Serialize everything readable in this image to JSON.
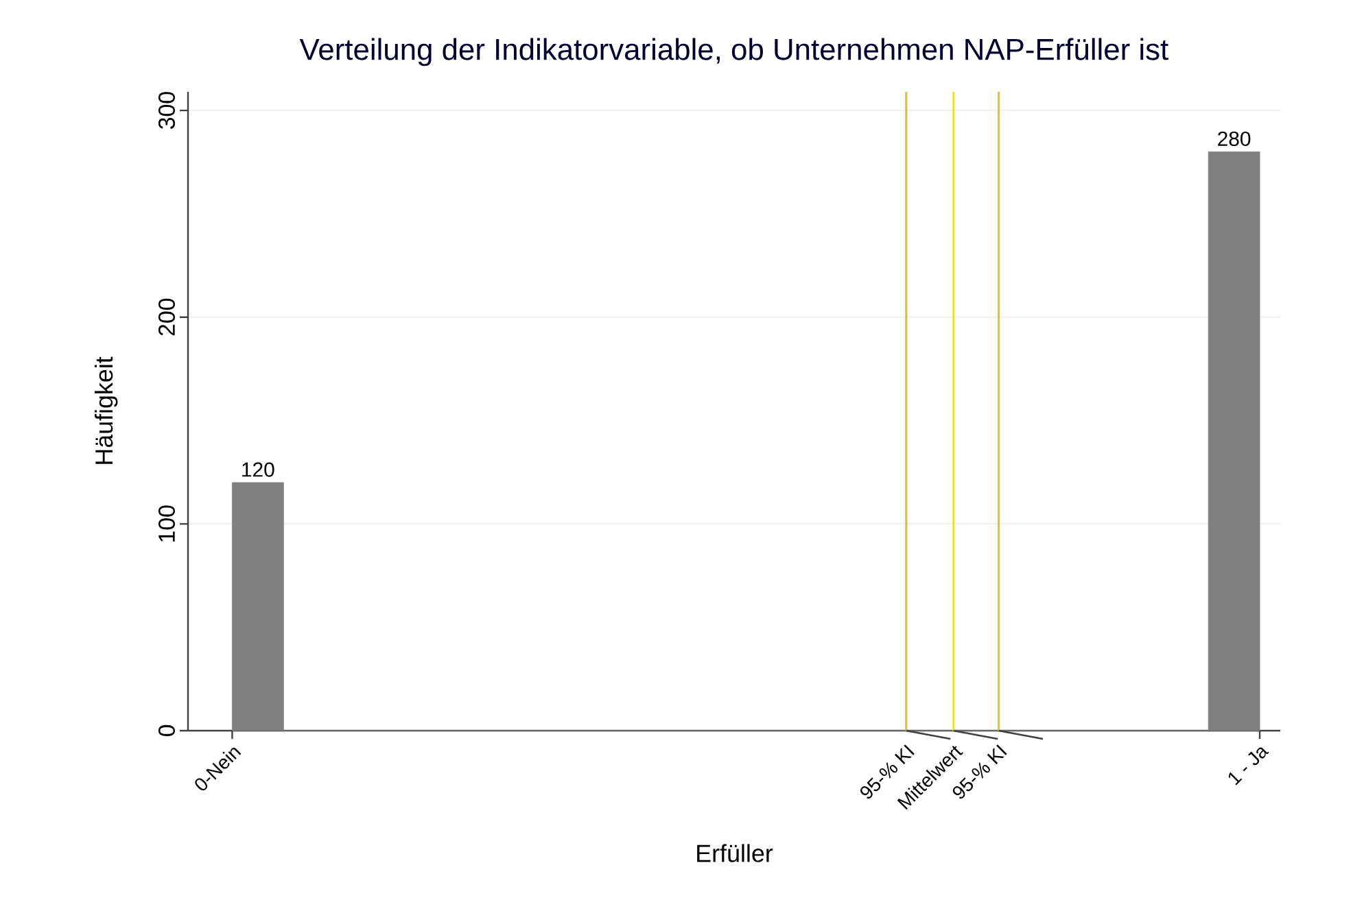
{
  "chart_data": {
    "type": "histogram",
    "title": "Verteilung der Indikatorvariable, ob Unternehmen NAP-Erfüller ist",
    "xlabel": "Erfüller",
    "ylabel": "Häufigkeit",
    "bins": [
      0,
      0.05,
      0.95,
      1
    ],
    "values": [
      120,
      0,
      280
    ],
    "value_labels": [
      "120",
      null,
      "280"
    ],
    "color": "#808080",
    "xlim": [
      -0.043,
      1.02
    ],
    "ylim": [
      0,
      309
    ],
    "xticks": [
      {
        "value": 0,
        "label": "0-Nein"
      },
      {
        "value": 1,
        "label": "1 - Ja"
      }
    ],
    "yticks": [
      0,
      100,
      200,
      300
    ],
    "grid": "y",
    "ref_lines": [
      {
        "axis": "x",
        "value": 0.656,
        "label": "95-% KI",
        "color": "#d9bc4a"
      },
      {
        "axis": "x",
        "value": 0.702,
        "label": "Mittelwert",
        "color": "#f2e21a"
      },
      {
        "axis": "x",
        "value": 0.746,
        "label": "95-% KI",
        "color": "#d9bc4a"
      }
    ]
  }
}
